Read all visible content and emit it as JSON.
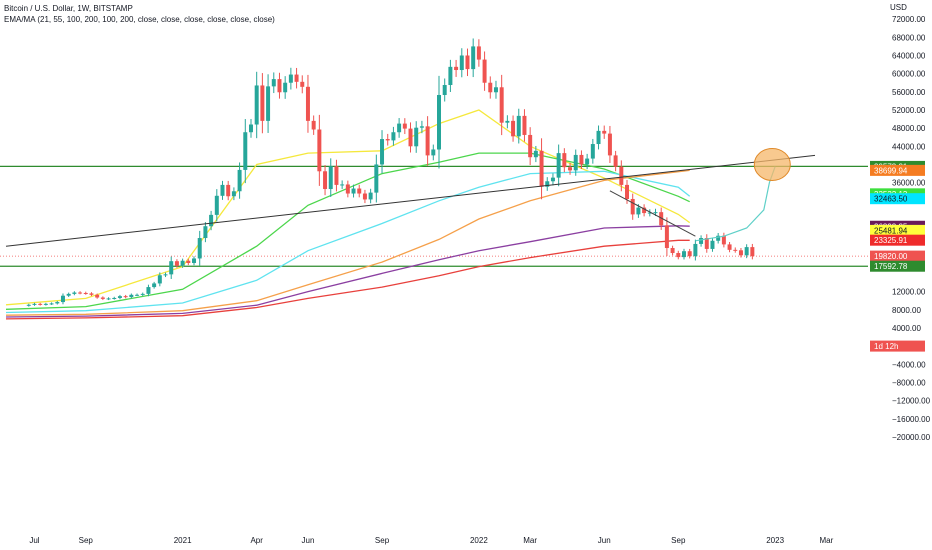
{
  "header": {
    "title": "Bitcoin / U.S. Dollar, 1W, BITSTAMP",
    "indicators": "EMA/MA (21, 55, 100, 200, 100, 200, close, close, close, close, close, close)"
  },
  "chart_data": {
    "type": "candlestick",
    "axis_unit": "USD",
    "ylim": [
      -22000,
      76000
    ],
    "y_ticks": [
      72000,
      68000,
      64000,
      60000,
      56000,
      52000,
      48000,
      44000,
      36000,
      12000,
      8000,
      4000,
      0,
      -4000,
      -8000,
      -12000,
      -16000,
      -20000
    ],
    "y_tick_labels": [
      "72000.00",
      "68000.00",
      "64000.00",
      "60000.00",
      "56000.00",
      "52000.00",
      "48000.00",
      "44000.00",
      "36000.00",
      "12000.00",
      "8000.00",
      "4000.00",
      "0.00",
      "−4000.00",
      "−8000.00",
      "−12000.00",
      "−16000.00",
      "−20000.00"
    ],
    "x_ticks": [
      {
        "label": "Jul",
        "week": 1
      },
      {
        "label": "Sep",
        "week": 10
      },
      {
        "label": "2021",
        "week": 27
      },
      {
        "label": "Apr",
        "week": 40
      },
      {
        "label": "Jun",
        "week": 49
      },
      {
        "label": "Sep",
        "week": 62
      },
      {
        "label": "2022",
        "week": 79
      },
      {
        "label": "Mar",
        "week": 88
      },
      {
        "label": "Jun",
        "week": 101
      },
      {
        "label": "Sep",
        "week": 114
      },
      {
        "label": "2023",
        "week": 131
      },
      {
        "label": "Mar",
        "week": 140
      }
    ],
    "week_range": [
      -4,
      148
    ],
    "candles_close": [
      9100,
      9300,
      9150,
      9300,
      9400,
      9700,
      11100,
      11500,
      11800,
      11700,
      11600,
      11300,
      10700,
      10400,
      10500,
      10600,
      11000,
      10800,
      11300,
      11300,
      11500,
      13000,
      13800,
      15600,
      15800,
      18700,
      17700,
      18800,
      18300,
      19300,
      23800,
      26400,
      28900,
      33100,
      35500,
      33000,
      34100,
      38800,
      47100,
      48800,
      57400,
      49600,
      57200,
      58800,
      55900,
      58000,
      59800,
      58200,
      57100,
      49600,
      47700,
      38500,
      34600,
      39600,
      35500,
      35600,
      33600,
      34700,
      33600,
      32300,
      33800,
      40000,
      45600,
      45300,
      47100,
      49000,
      47900,
      44000,
      48100,
      48400,
      42000,
      43300,
      55300,
      57500,
      61500,
      60800,
      64000,
      61000,
      66000,
      63100,
      58000,
      55900,
      57000,
      49200,
      49600,
      46200,
      50700,
      46500,
      41600,
      43000,
      35100,
      36300,
      37100,
      42500,
      39400,
      38700,
      42100,
      40000,
      41300,
      44500,
      47400,
      46800,
      42000,
      39500,
      35500,
      32400,
      29000,
      30500,
      29300,
      29400,
      29500,
      26600,
      21600,
      20500,
      19600,
      20900,
      19800,
      22500,
      23800,
      21400,
      23200,
      24300,
      22400,
      21200,
      21100,
      20000,
      21800,
      19800
    ],
    "series": [
      {
        "label": "EMA 21",
        "color": "#f5e83c",
        "points": [
          [
            -4,
            9100
          ],
          [
            10,
            10500
          ],
          [
            27,
            17500
          ],
          [
            40,
            40000
          ],
          [
            49,
            42500
          ],
          [
            62,
            43000
          ],
          [
            72,
            49000
          ],
          [
            79,
            52000
          ],
          [
            88,
            44000
          ],
          [
            101,
            37000
          ],
          [
            114,
            29000
          ],
          [
            116,
            27200
          ]
        ]
      },
      {
        "label": "EMA 55",
        "color": "#4cd64c",
        "points": [
          [
            -4,
            8100
          ],
          [
            10,
            8700
          ],
          [
            27,
            12500
          ],
          [
            40,
            22000
          ],
          [
            49,
            31000
          ],
          [
            62,
            38000
          ],
          [
            72,
            40500
          ],
          [
            79,
            42500
          ],
          [
            88,
            42500
          ],
          [
            101,
            39000
          ],
          [
            114,
            33000
          ],
          [
            116,
            31800
          ]
        ]
      },
      {
        "label": "EMA 100",
        "color": "#5fe3ef",
        "points": [
          [
            -4,
            7400
          ],
          [
            10,
            7800
          ],
          [
            27,
            9500
          ],
          [
            40,
            14500
          ],
          [
            49,
            21000
          ],
          [
            62,
            27000
          ],
          [
            72,
            32000
          ],
          [
            79,
            35000
          ],
          [
            88,
            38000
          ],
          [
            101,
            38500
          ],
          [
            114,
            35000
          ],
          [
            116,
            33000
          ]
        ]
      },
      {
        "label": "EMA 200",
        "color": "#f5a04a",
        "points": [
          [
            -4,
            6800
          ],
          [
            10,
            7000
          ],
          [
            27,
            7800
          ],
          [
            40,
            10000
          ],
          [
            49,
            13500
          ],
          [
            62,
            18500
          ],
          [
            72,
            23500
          ],
          [
            79,
            28000
          ],
          [
            88,
            32000
          ],
          [
            101,
            36500
          ],
          [
            114,
            38400
          ],
          [
            116,
            38700
          ]
        ]
      },
      {
        "label": "MA 100",
        "color": "#8b3fa1",
        "points": [
          [
            -4,
            6400
          ],
          [
            10,
            6600
          ],
          [
            27,
            7200
          ],
          [
            40,
            9000
          ],
          [
            49,
            12000
          ],
          [
            62,
            16000
          ],
          [
            72,
            19000
          ],
          [
            79,
            21000
          ],
          [
            88,
            23000
          ],
          [
            101,
            26000
          ],
          [
            114,
            26500
          ],
          [
            116,
            26400
          ]
        ]
      },
      {
        "label": "MA 200",
        "color": "#e8403c",
        "points": [
          [
            -4,
            6000
          ],
          [
            10,
            6200
          ],
          [
            27,
            6700
          ],
          [
            40,
            8500
          ],
          [
            49,
            10500
          ],
          [
            62,
            13000
          ],
          [
            72,
            15500
          ],
          [
            79,
            17500
          ],
          [
            88,
            19500
          ],
          [
            101,
            22000
          ],
          [
            114,
            23300
          ],
          [
            116,
            23300
          ]
        ]
      }
    ],
    "horizontal_lines": [
      39573,
      17593
    ],
    "current_price_line": 19820,
    "trendlines": [
      {
        "color": "#333333",
        "points": [
          [
            -4,
            22000
          ],
          [
            138,
            42000
          ]
        ]
      },
      {
        "color": "#444444",
        "points": [
          [
            102,
            34200
          ],
          [
            117,
            24200
          ]
        ]
      }
    ],
    "projection": {
      "color": "#5fd0c8",
      "points": [
        [
          117,
          23200
        ],
        [
          122,
          24200
        ],
        [
          126,
          26000
        ],
        [
          129,
          30000
        ],
        [
          130,
          36000
        ],
        [
          131,
          39500
        ]
      ]
    },
    "target_circle": {
      "week": 130.5,
      "price": 40000
    },
    "price_badges": [
      {
        "value": "39573.21",
        "bg": "#2e8b2e",
        "fg": "#ffffff"
      },
      {
        "value": "38699.94",
        "bg": "#f57c21",
        "fg": "#ffffff"
      },
      {
        "value": "33532.13",
        "bg": "#3de03d",
        "fg": "#ffffff"
      },
      {
        "value": "32463.50",
        "bg": "#00e5ff",
        "fg": "#131722"
      },
      {
        "value": "26392.25",
        "bg": "#6a1b5a",
        "fg": "#ffffff"
      },
      {
        "value": "25481.94",
        "bg": "#ffff3c",
        "fg": "#131722"
      },
      {
        "value": "23325.91",
        "bg": "#ef2b2b",
        "fg": "#ffffff"
      },
      {
        "value": "19820.00",
        "bg": "#ef5350",
        "fg": "#ffffff"
      },
      {
        "value": "1d 12h",
        "bg": "#ef5350",
        "fg": "#ffffff"
      },
      {
        "value": "17592.78",
        "bg": "#2e8b2e",
        "fg": "#ffffff"
      }
    ]
  },
  "colors": {
    "up": "#26a69a",
    "down": "#ef5350",
    "hline": "#2e8b2e",
    "circle_fill": "#f5b76a",
    "circle_stroke": "#e08a2a",
    "axis_text": "#131722"
  }
}
